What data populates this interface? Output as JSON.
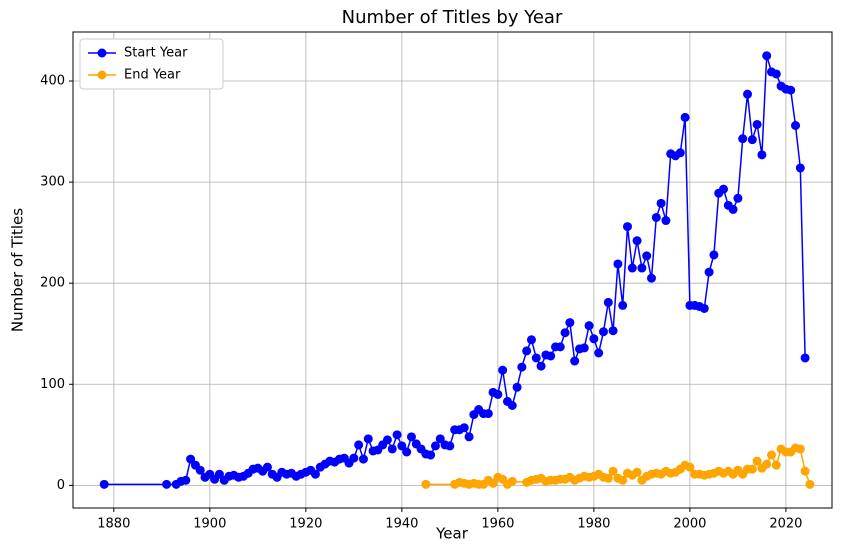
{
  "chart_data": {
    "type": "line",
    "title": "Number of Titles by Year",
    "x_label": "Year",
    "y_label": "Number of Titles",
    "xlim": [
      1871.5,
      2029.6
    ],
    "ylim": [
      -22.4,
      448.5
    ],
    "xticks": [
      1880,
      1900,
      1920,
      1940,
      1960,
      1980,
      2000,
      2020
    ],
    "yticks": [
      0,
      100,
      200,
      300,
      400
    ],
    "grid": true,
    "legend": "upper-left",
    "series": [
      {
        "name": "Start Year",
        "color": "#0000ff",
        "x": [
          1878,
          1891,
          1893,
          1894,
          1895,
          1896,
          1897,
          1898,
          1899,
          1900,
          1901,
          1902,
          1903,
          1904,
          1905,
          1906,
          1907,
          1908,
          1909,
          1910,
          1911,
          1912,
          1913,
          1914,
          1915,
          1916,
          1917,
          1918,
          1919,
          1920,
          1921,
          1922,
          1923,
          1924,
          1925,
          1926,
          1927,
          1928,
          1929,
          1930,
          1931,
          1932,
          1933,
          1934,
          1935,
          1936,
          1937,
          1938,
          1939,
          1940,
          1941,
          1942,
          1943,
          1944,
          1945,
          1946,
          1947,
          1948,
          1949,
          1950,
          1951,
          1952,
          1953,
          1954,
          1955,
          1956,
          1957,
          1958,
          1959,
          1960,
          1961,
          1962,
          1963,
          1964,
          1965,
          1966,
          1967,
          1968,
          1969,
          1970,
          1971,
          1972,
          1973,
          1974,
          1975,
          1976,
          1977,
          1978,
          1979,
          1980,
          1981,
          1982,
          1983,
          1984,
          1985,
          1986,
          1987,
          1988,
          1989,
          1990,
          1991,
          1992,
          1993,
          1994,
          1995,
          1996,
          1997,
          1998,
          1999,
          2000,
          2001,
          2002,
          2003,
          2004,
          2005,
          2006,
          2007,
          2008,
          2009,
          2010,
          2011,
          2012,
          2013,
          2014,
          2015,
          2016,
          2017,
          2018,
          2019,
          2020,
          2021,
          2022,
          2023,
          2024
        ],
        "values": [
          1,
          1,
          1,
          4,
          5,
          26,
          20,
          15,
          8,
          11,
          6,
          11,
          5,
          9,
          10,
          8,
          9,
          12,
          16,
          17,
          14,
          18,
          11,
          8,
          13,
          11,
          12,
          9,
          11,
          13,
          15,
          11,
          18,
          21,
          24,
          23,
          26,
          27,
          22,
          27,
          40,
          26,
          46,
          34,
          35,
          40,
          45,
          36,
          50,
          39,
          33,
          48,
          41,
          36,
          31,
          30,
          39,
          46,
          40,
          39,
          55,
          55,
          57,
          48,
          70,
          75,
          71,
          71,
          92,
          90,
          114,
          83,
          79,
          97,
          117,
          133,
          144,
          126,
          118,
          129,
          128,
          137,
          137,
          151,
          161,
          123,
          135,
          136,
          158,
          145,
          131,
          152,
          181,
          153,
          219,
          178,
          256,
          215,
          242,
          215,
          227,
          205,
          265,
          279,
          262,
          328,
          326,
          329,
          364,
          178,
          178,
          177,
          175,
          211,
          228,
          289,
          293,
          277,
          273,
          284,
          343,
          387,
          342,
          357,
          327,
          425,
          409,
          407,
          395,
          392,
          391,
          356,
          314,
          126
        ]
      },
      {
        "name": "End Year",
        "color": "#ffa500",
        "x": [
          1945,
          1951,
          1952,
          1953,
          1954,
          1955,
          1956,
          1957,
          1958,
          1959,
          1960,
          1961,
          1962,
          1963,
          1966,
          1967,
          1968,
          1969,
          1970,
          1971,
          1972,
          1973,
          1974,
          1975,
          1976,
          1977,
          1978,
          1979,
          1980,
          1981,
          1982,
          1983,
          1984,
          1985,
          1986,
          1987,
          1988,
          1989,
          1990,
          1991,
          1992,
          1993,
          1994,
          1995,
          1996,
          1997,
          1998,
          1999,
          2000,
          2001,
          2002,
          2003,
          2004,
          2005,
          2006,
          2007,
          2008,
          2009,
          2010,
          2011,
          2012,
          2013,
          2014,
          2015,
          2016,
          2017,
          2018,
          2019,
          2020,
          2021,
          2022,
          2023,
          2024,
          2025
        ],
        "values": [
          1,
          1,
          3,
          2,
          1,
          2,
          1,
          1,
          5,
          2,
          8,
          6,
          1,
          4,
          3,
          5,
          6,
          7,
          4,
          5,
          5,
          6,
          6,
          8,
          5,
          7,
          9,
          8,
          9,
          11,
          8,
          7,
          14,
          7,
          5,
          12,
          10,
          13,
          5,
          9,
          11,
          12,
          11,
          14,
          12,
          13,
          16,
          20,
          18,
          11,
          11,
          10,
          11,
          12,
          14,
          12,
          14,
          11,
          15,
          11,
          16,
          16,
          24,
          17,
          21,
          30,
          20,
          36,
          33,
          33,
          37,
          36,
          14,
          1
        ]
      }
    ]
  }
}
